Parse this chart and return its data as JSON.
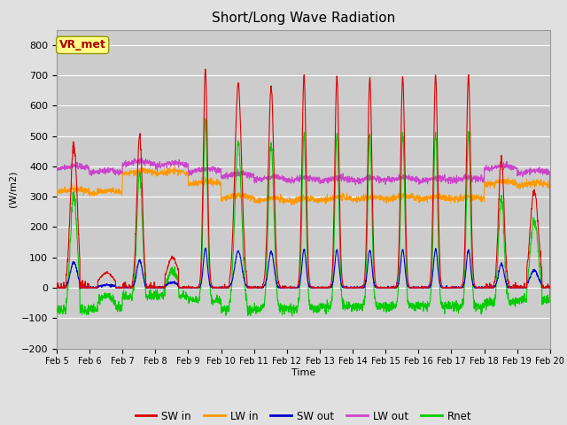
{
  "title": "Short/Long Wave Radiation",
  "ylabel": "(W/m2)",
  "xlabel": "Time",
  "ylim": [
    -200,
    850
  ],
  "yticks": [
    -200,
    -100,
    0,
    100,
    200,
    300,
    400,
    500,
    600,
    700,
    800
  ],
  "background_color": "#e0e0e0",
  "plot_bg_color": "#cccccc",
  "grid_color": "#ffffff",
  "colors": {
    "SW_in": "#dd0000",
    "LW_in": "#ff9900",
    "SW_out": "#0000cc",
    "LW_out": "#cc44cc",
    "Rnet": "#00cc00"
  },
  "label_box": "VR_met",
  "label_box_color": "#ffff88",
  "label_box_text_color": "#aa0000",
  "n_days": 15,
  "start_day": 5,
  "end_day": 20,
  "figsize": [
    6.4,
    4.8
  ],
  "dpi": 100
}
